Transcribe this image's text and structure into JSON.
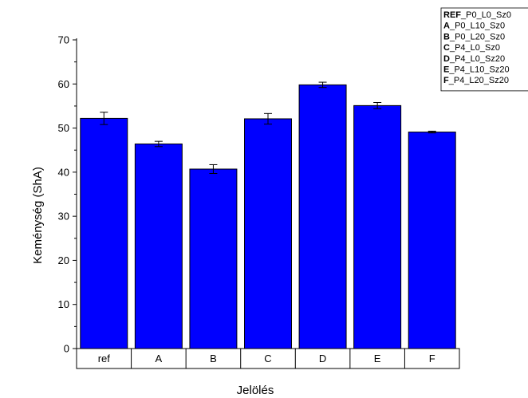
{
  "chart_data": {
    "type": "bar",
    "xlabel": "Jelölés",
    "ylabel": "Keménység (ShA)",
    "ylim": [
      0,
      70
    ],
    "yticks": [
      0,
      10,
      20,
      30,
      40,
      50,
      60,
      70
    ],
    "categories": [
      "ref",
      "A",
      "B",
      "C",
      "D",
      "E",
      "F"
    ],
    "values": [
      52.2,
      46.4,
      40.7,
      52.1,
      59.8,
      55.1,
      49.1
    ],
    "errors": [
      1.4,
      0.6,
      1.0,
      1.2,
      0.6,
      0.7,
      0.2
    ],
    "bar_color": "#0000ff",
    "grid": false,
    "legend": {
      "position": "top-right",
      "entries": [
        {
          "key": "REF",
          "rest": "_P0_L0_Sz0"
        },
        {
          "key": "A",
          "rest": "_P0_L10_Sz0"
        },
        {
          "key": "B",
          "rest": "_P0_L20_Sz0"
        },
        {
          "key": "C",
          "rest": "_P4_L0_Sz0"
        },
        {
          "key": "D",
          "rest": "_P4_L0_Sz20"
        },
        {
          "key": "E",
          "rest": "_P4_L10_Sz20"
        },
        {
          "key": "F",
          "rest": "_P4_L20_Sz20"
        }
      ]
    }
  }
}
